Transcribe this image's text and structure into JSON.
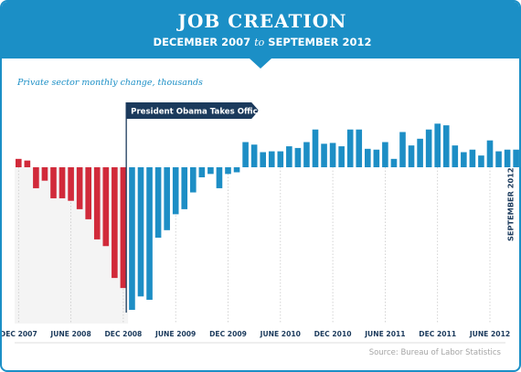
{
  "header": {
    "title": "JOB CREATION",
    "subtitle_start": "DECEMBER 2007",
    "subtitle_join": "to",
    "subtitle_end": "SEPTEMBER 2012"
  },
  "source": "Source: Bureau of Labor Statistics",
  "colors": {
    "brand": "#1b8fc6",
    "negative_before": "#d12a3a",
    "after": "#1d8ec5",
    "recession_shade": "#f4f4f4"
  },
  "chart_data": {
    "type": "bar",
    "title": "JOB CREATION",
    "ylabel": "Private sector monthly change, thousands",
    "ylim": [
      -850,
      300
    ],
    "grid": false,
    "categories": [
      "Dec 2007",
      "Jan 2008",
      "Feb 2008",
      "Mar 2008",
      "Apr 2008",
      "May 2008",
      "Jun 2008",
      "Jul 2008",
      "Aug 2008",
      "Sep 2008",
      "Oct 2008",
      "Nov 2008",
      "Dec 2008",
      "Jan 2009",
      "Feb 2009",
      "Mar 2009",
      "Apr 2009",
      "May 2009",
      "Jun 2009",
      "Jul 2009",
      "Aug 2009",
      "Sep 2009",
      "Oct 2009",
      "Nov 2009",
      "Dec 2009",
      "Jan 2010",
      "Feb 2010",
      "Mar 2010",
      "Apr 2010",
      "May 2010",
      "Jun 2010",
      "Jul 2010",
      "Aug 2010",
      "Sep 2010",
      "Oct 2010",
      "Nov 2010",
      "Dec 2010",
      "Jan 2011",
      "Feb 2011",
      "Mar 2011",
      "Apr 2011",
      "May 2011",
      "Jun 2011",
      "Jul 2011",
      "Aug 2011",
      "Sep 2011",
      "Oct 2011",
      "Nov 2011",
      "Dec 2011",
      "Jan 2012",
      "Feb 2012",
      "Mar 2012",
      "Apr 2012",
      "May 2012",
      "Jun 2012",
      "Jul 2012",
      "Aug 2012",
      "Sep 2012"
    ],
    "values": [
      50,
      40,
      -125,
      -80,
      -185,
      -185,
      -200,
      -250,
      -310,
      -430,
      -470,
      -660,
      -720,
      -850,
      -770,
      -790,
      -420,
      -375,
      -280,
      -250,
      -150,
      -60,
      -40,
      -125,
      -40,
      -30,
      150,
      135,
      90,
      95,
      95,
      125,
      115,
      150,
      225,
      140,
      145,
      125,
      225,
      225,
      110,
      105,
      150,
      50,
      210,
      130,
      170,
      225,
      260,
      250,
      130,
      90,
      105,
      70,
      160,
      95,
      105,
      105
    ],
    "series_colors_by_period": [
      {
        "from": "Dec 2007",
        "to": "Dec 2008",
        "color": "#d12a3a"
      },
      {
        "from": "Jan 2009",
        "to": "Sep 2012",
        "color": "#1d8ec5"
      }
    ],
    "shaded_region": {
      "from": "Dec 2007",
      "to": "Dec 2008"
    },
    "annotations": [
      {
        "text": "President Obama Takes Office",
        "at": "Jan 2009"
      },
      {
        "text": "SEPTEMBER 2012",
        "at": "Sep 2012",
        "orientation": "vertical"
      }
    ],
    "x_tick_labels": [
      {
        "label": "DEC 2007",
        "at": "Dec 2007"
      },
      {
        "label": "JUNE 2008",
        "at": "Jun 2008"
      },
      {
        "label": "DEC 2008",
        "at": "Dec 2008"
      },
      {
        "label": "JUNE 2009",
        "at": "Jun 2009"
      },
      {
        "label": "DEC 2009",
        "at": "Dec 2009"
      },
      {
        "label": "JUNE 2010",
        "at": "Jun 2010"
      },
      {
        "label": "DEC 2010",
        "at": "Dec 2010"
      },
      {
        "label": "JUNE 2011",
        "at": "Jun 2011"
      },
      {
        "label": "DEC 2011",
        "at": "Dec 2011"
      },
      {
        "label": "JUNE 2012",
        "at": "Jun 2012"
      }
    ]
  }
}
